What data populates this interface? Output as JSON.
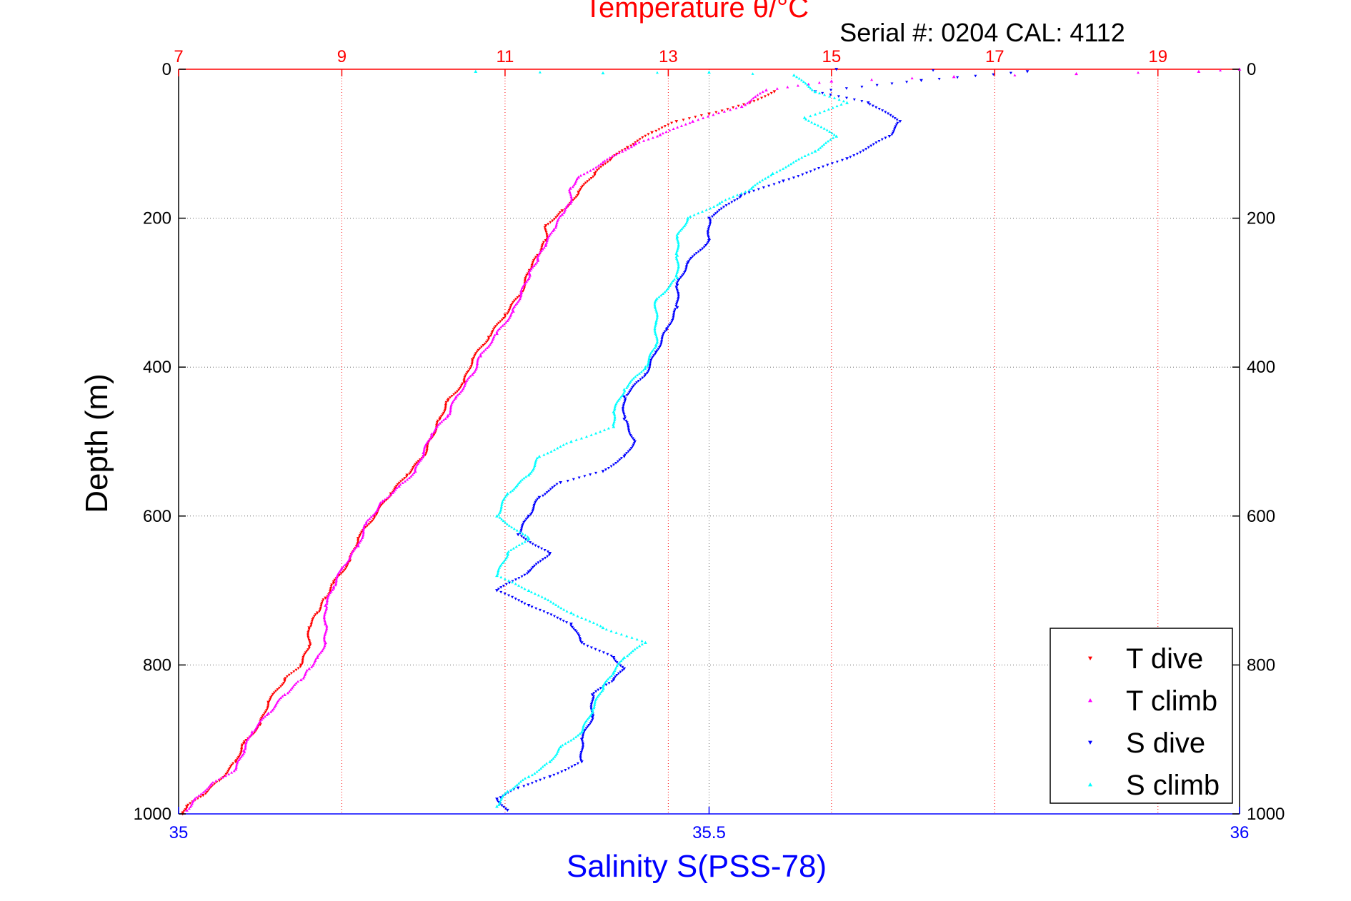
{
  "header": {
    "title": "Temperature θ/°C",
    "subtitle": "Serial #: 0204  CAL: 4112"
  },
  "chart_data": {
    "type": "scatter",
    "title": "Temperature θ/°C",
    "subtitle": "Serial #: 0204  CAL: 4112",
    "xlabel": "Salinity S(PSS-78)",
    "x2label": "Temperature θ/°C",
    "ylabel": "Depth (m)",
    "xlim": [
      35,
      36
    ],
    "x2lim": [
      7,
      20
    ],
    "ylim": [
      0,
      1000
    ],
    "y_reversed": true,
    "x_ticks": [
      35,
      35.5,
      36
    ],
    "x_tick_labels": [
      "35",
      "35.5",
      "36"
    ],
    "x2_ticks": [
      7,
      9,
      11,
      13,
      15,
      17,
      19
    ],
    "x2_tick_labels": [
      "7",
      "9",
      "11",
      "13",
      "15",
      "17",
      "19"
    ],
    "y_ticks": [
      0,
      200,
      400,
      600,
      800,
      1000
    ],
    "y_tick_labels": [
      "0",
      "200",
      "400",
      "600",
      "800",
      "1000"
    ],
    "grid": true,
    "legend_position": "bottom-right",
    "series": [
      {
        "name": "T dive",
        "axis": "temperature",
        "color": "#ff0000",
        "marker": "triangle-down",
        "points": [
          [
            14.3,
            30
          ],
          [
            14.0,
            45
          ],
          [
            13.5,
            60
          ],
          [
            13.1,
            70
          ],
          [
            12.8,
            85
          ],
          [
            12.5,
            105
          ],
          [
            12.3,
            120
          ],
          [
            12.1,
            140
          ],
          [
            11.9,
            165
          ],
          [
            11.8,
            180
          ],
          [
            11.7,
            190
          ],
          [
            11.5,
            210
          ],
          [
            11.5,
            230
          ],
          [
            11.4,
            250
          ],
          [
            11.3,
            270
          ],
          [
            11.2,
            300
          ],
          [
            11.0,
            330
          ],
          [
            10.8,
            360
          ],
          [
            10.6,
            390
          ],
          [
            10.5,
            420
          ],
          [
            10.3,
            445
          ],
          [
            10.2,
            470
          ],
          [
            10.1,
            495
          ],
          [
            10.0,
            520
          ],
          [
            9.8,
            545
          ],
          [
            9.6,
            570
          ],
          [
            9.4,
            600
          ],
          [
            9.2,
            630
          ],
          [
            9.1,
            660
          ],
          [
            8.9,
            690
          ],
          [
            8.8,
            710
          ],
          [
            8.7,
            730
          ],
          [
            8.6,
            750
          ],
          [
            8.6,
            775
          ],
          [
            8.5,
            800
          ],
          [
            8.3,
            820
          ],
          [
            8.1,
            850
          ],
          [
            8.0,
            880
          ],
          [
            7.8,
            905
          ],
          [
            7.7,
            930
          ],
          [
            7.5,
            955
          ],
          [
            7.3,
            975
          ],
          [
            7.1,
            990
          ],
          [
            7.05,
            1000
          ]
        ]
      },
      {
        "name": "T climb",
        "axis": "temperature",
        "color": "#ff00ff",
        "marker": "triangle-up",
        "points": [
          [
            20.0,
            0
          ],
          [
            19.5,
            3
          ],
          [
            18.0,
            6
          ],
          [
            16.5,
            10
          ],
          [
            15.0,
            16
          ],
          [
            14.2,
            28
          ],
          [
            13.9,
            50
          ],
          [
            13.3,
            70
          ],
          [
            12.9,
            88
          ],
          [
            12.6,
            100
          ],
          [
            12.2,
            125
          ],
          [
            11.9,
            145
          ],
          [
            11.8,
            160
          ],
          [
            11.8,
            180
          ],
          [
            11.7,
            195
          ],
          [
            11.6,
            215
          ],
          [
            11.5,
            235
          ],
          [
            11.4,
            255
          ],
          [
            11.3,
            275
          ],
          [
            11.2,
            300
          ],
          [
            11.1,
            325
          ],
          [
            10.9,
            355
          ],
          [
            10.7,
            385
          ],
          [
            10.6,
            410
          ],
          [
            10.4,
            440
          ],
          [
            10.3,
            465
          ],
          [
            10.1,
            490
          ],
          [
            10.0,
            515
          ],
          [
            9.9,
            540
          ],
          [
            9.7,
            560
          ],
          [
            9.5,
            580
          ],
          [
            9.3,
            610
          ],
          [
            9.2,
            640
          ],
          [
            9.0,
            670
          ],
          [
            8.9,
            695
          ],
          [
            8.8,
            720
          ],
          [
            8.8,
            745
          ],
          [
            8.8,
            770
          ],
          [
            8.7,
            790
          ],
          [
            8.6,
            805
          ],
          [
            8.5,
            820
          ],
          [
            8.3,
            840
          ],
          [
            8.1,
            865
          ],
          [
            7.9,
            890
          ],
          [
            7.8,
            915
          ],
          [
            7.7,
            940
          ],
          [
            7.4,
            960
          ],
          [
            7.2,
            980
          ],
          [
            7.1,
            995
          ]
        ]
      },
      {
        "name": "S dive",
        "axis": "salinity",
        "color": "#0000ff",
        "marker": "triangle-down",
        "points": [
          [
            35.62,
            0
          ],
          [
            35.8,
            3
          ],
          [
            35.7,
            15
          ],
          [
            35.6,
            30
          ],
          [
            35.65,
            45
          ],
          [
            35.68,
            70
          ],
          [
            35.67,
            90
          ],
          [
            35.63,
            120
          ],
          [
            35.57,
            150
          ],
          [
            35.53,
            170
          ],
          [
            35.5,
            200
          ],
          [
            35.5,
            230
          ],
          [
            35.48,
            260
          ],
          [
            35.47,
            290
          ],
          [
            35.47,
            320
          ],
          [
            35.46,
            350
          ],
          [
            35.45,
            380
          ],
          [
            35.44,
            410
          ],
          [
            35.42,
            440
          ],
          [
            35.42,
            470
          ],
          [
            35.43,
            500
          ],
          [
            35.42,
            520
          ],
          [
            35.4,
            540
          ],
          [
            35.36,
            555
          ],
          [
            35.34,
            575
          ],
          [
            35.33,
            600
          ],
          [
            35.32,
            625
          ],
          [
            35.35,
            650
          ],
          [
            35.33,
            675
          ],
          [
            35.3,
            700
          ],
          [
            35.33,
            720
          ],
          [
            35.37,
            745
          ],
          [
            35.38,
            770
          ],
          [
            35.41,
            790
          ],
          [
            35.42,
            805
          ],
          [
            35.41,
            820
          ],
          [
            35.39,
            840
          ],
          [
            35.39,
            870
          ],
          [
            35.38,
            900
          ],
          [
            35.38,
            930
          ],
          [
            35.35,
            950
          ],
          [
            35.32,
            965
          ],
          [
            35.3,
            980
          ],
          [
            35.31,
            995
          ]
        ]
      },
      {
        "name": "S climb",
        "axis": "salinity",
        "color": "#00ffff",
        "marker": "triangle-up",
        "points": [
          [
            35.28,
            3
          ],
          [
            35.4,
            5
          ],
          [
            35.5,
            4
          ],
          [
            35.58,
            8
          ],
          [
            35.6,
            30
          ],
          [
            35.63,
            45
          ],
          [
            35.59,
            65
          ],
          [
            35.62,
            90
          ],
          [
            35.6,
            110
          ],
          [
            35.56,
            140
          ],
          [
            35.54,
            160
          ],
          [
            35.51,
            180
          ],
          [
            35.48,
            200
          ],
          [
            35.47,
            225
          ],
          [
            35.47,
            250
          ],
          [
            35.47,
            280
          ],
          [
            35.45,
            310
          ],
          [
            35.45,
            340
          ],
          [
            35.45,
            370
          ],
          [
            35.44,
            400
          ],
          [
            35.42,
            430
          ],
          [
            35.41,
            460
          ],
          [
            35.41,
            480
          ],
          [
            35.37,
            500
          ],
          [
            35.34,
            520
          ],
          [
            35.33,
            545
          ],
          [
            35.31,
            570
          ],
          [
            35.3,
            600
          ],
          [
            35.33,
            630
          ],
          [
            35.31,
            650
          ],
          [
            35.3,
            680
          ],
          [
            35.33,
            700
          ],
          [
            35.37,
            730
          ],
          [
            35.4,
            750
          ],
          [
            35.44,
            770
          ],
          [
            35.42,
            790
          ],
          [
            35.41,
            810
          ],
          [
            35.4,
            830
          ],
          [
            35.39,
            860
          ],
          [
            35.38,
            890
          ],
          [
            35.36,
            910
          ],
          [
            35.35,
            930
          ],
          [
            35.33,
            950
          ],
          [
            35.31,
            970
          ],
          [
            35.3,
            990
          ]
        ]
      }
    ]
  },
  "colors": {
    "temperature_axis": "#ff0000",
    "salinity_axis": "#0000ff",
    "grid": "#888888",
    "frame": "#000000"
  }
}
